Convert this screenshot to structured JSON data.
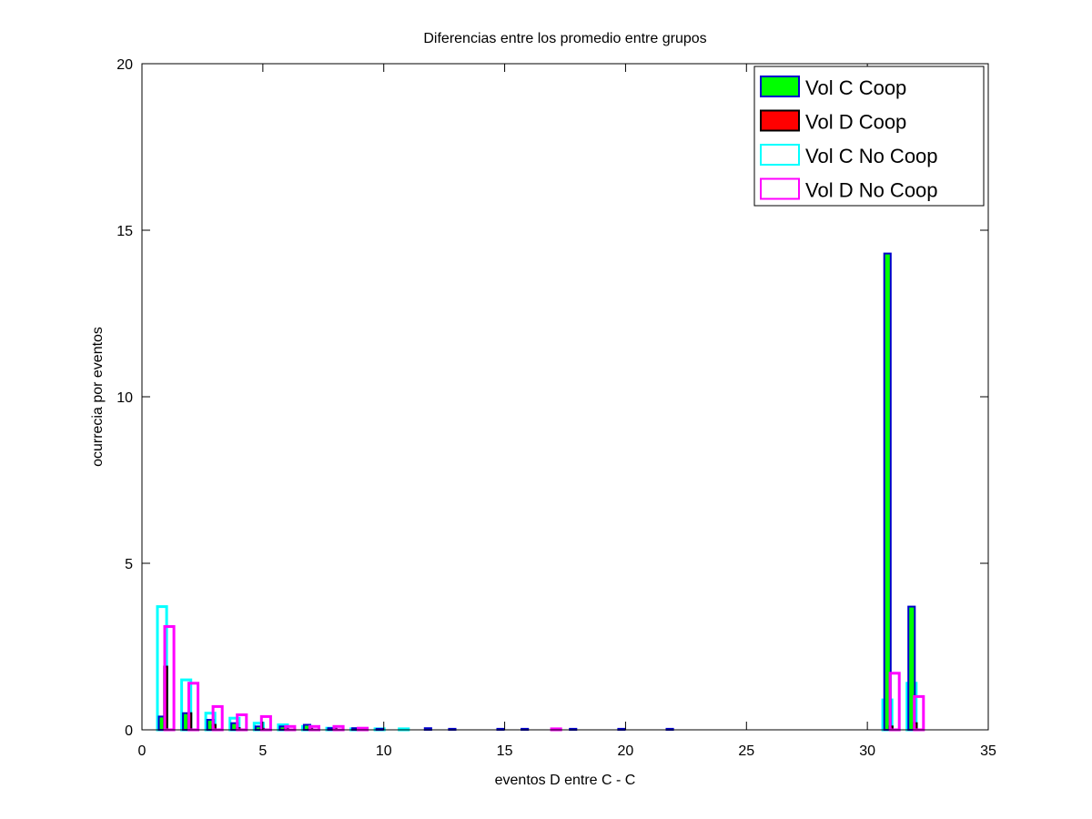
{
  "chart_data": {
    "type": "bar",
    "title": "Diferencias entre los promedio entre grupos",
    "xlabel": "eventos D entre C - C",
    "ylabel": "ocurrecia por eventos",
    "xlim": [
      0,
      35
    ],
    "ylim": [
      0,
      20
    ],
    "xticks": [
      0,
      5,
      10,
      15,
      20,
      25,
      30,
      35
    ],
    "yticks": [
      0,
      5,
      10,
      15,
      20
    ],
    "grid": false,
    "legend_position": "top-right",
    "x": [
      1,
      2,
      3,
      4,
      5,
      6,
      7,
      8,
      9,
      10,
      11,
      12,
      13,
      15,
      16,
      17,
      18,
      20,
      22,
      31,
      32
    ],
    "series": [
      {
        "name": "Vol C Coop",
        "fill": "#00ff00",
        "edge": "#0000cc",
        "filled": true,
        "values": [
          0.4,
          0.5,
          0.3,
          0.2,
          0.1,
          0.1,
          0.15,
          0.05,
          0.05,
          0.03,
          0,
          0.05,
          0.03,
          0.03,
          0.03,
          0,
          0.03,
          0.03,
          0.03,
          14.3,
          3.7
        ]
      },
      {
        "name": "Vol D Coop",
        "fill": "#ff0000",
        "edge": "#000000",
        "filled": true,
        "values": [
          1.9,
          0.5,
          0.15,
          0.05,
          0.03,
          0.03,
          0.03,
          0.03,
          0.03,
          0,
          0,
          0,
          0,
          0,
          0,
          0,
          0,
          0,
          0,
          0.1,
          0.2
        ]
      },
      {
        "name": "Vol C No Coop",
        "fill": "none",
        "edge": "#00ffff",
        "filled": false,
        "values": [
          3.7,
          1.5,
          0.5,
          0.35,
          0.2,
          0.15,
          0.1,
          0.05,
          0.03,
          0.03,
          0.03,
          0,
          0,
          0,
          0,
          0,
          0,
          0,
          0,
          0.9,
          1.4
        ]
      },
      {
        "name": "Vol D No Coop",
        "fill": "none",
        "edge": "#ff00ff",
        "filled": false,
        "values": [
          3.1,
          1.4,
          0.7,
          0.45,
          0.4,
          0.1,
          0.1,
          0.1,
          0.05,
          0,
          0,
          0,
          0,
          0,
          0,
          0.03,
          0,
          0,
          0,
          1.7,
          1.0
        ]
      }
    ]
  }
}
